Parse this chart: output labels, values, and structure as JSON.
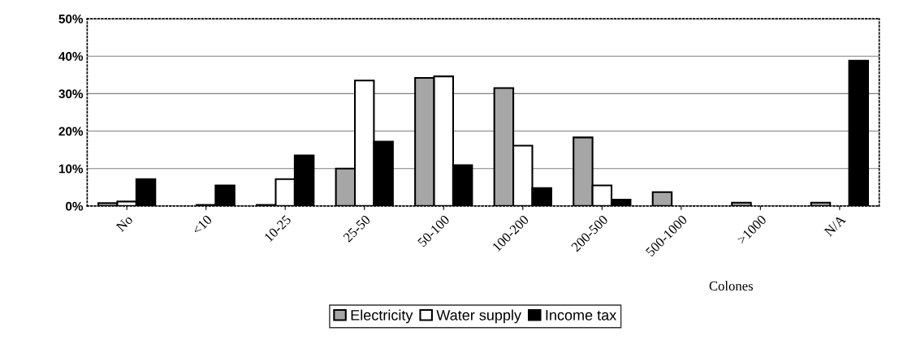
{
  "chart_data": {
    "type": "bar",
    "xlabel": "Colones",
    "categories": [
      "No",
      "<10",
      "10-25",
      "25-50",
      "50-100",
      "100-200",
      "200-500",
      "500-1000",
      ">1000",
      "N/A"
    ],
    "series": [
      {
        "name": "Electricity",
        "color": "#a6a6a6",
        "values": [
          0.8,
          0,
          0.3,
          10,
          34.2,
          31.5,
          18.3,
          3.7,
          0.9,
          0.9
        ]
      },
      {
        "name": "Water supply",
        "color": "#ffffff",
        "values": [
          1.2,
          0.3,
          7.2,
          33.5,
          34.6,
          16.1,
          5.5,
          0,
          0,
          0
        ]
      },
      {
        "name": "Income tax",
        "color": "#000000",
        "values": [
          7.2,
          5.5,
          13.5,
          17.2,
          10.9,
          4.8,
          1.7,
          0,
          0,
          38.8
        ]
      }
    ],
    "ylim": [
      0,
      50
    ],
    "yticks": [
      {
        "value": 0,
        "label": "0%"
      },
      {
        "value": 10,
        "label": "10%"
      },
      {
        "value": 20,
        "label": "20%"
      },
      {
        "value": 30,
        "label": "30%"
      },
      {
        "value": 40,
        "label": "40%"
      },
      {
        "value": 50,
        "label": "50%"
      }
    ],
    "grid": "y",
    "legend": "bottom"
  }
}
